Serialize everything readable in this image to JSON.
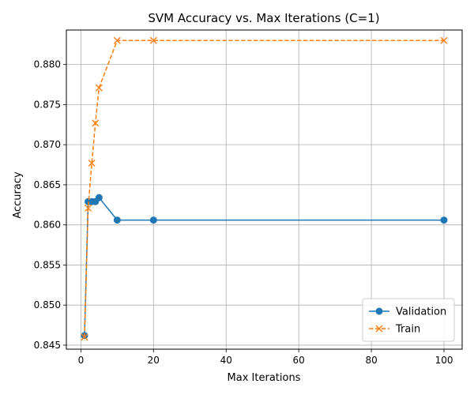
{
  "chart_data": {
    "type": "line",
    "title": "SVM Accuracy vs. Max Iterations (C=1)",
    "xlabel": "Max Iterations",
    "ylabel": "Accuracy",
    "xlim": [
      -4,
      105
    ],
    "ylim": [
      0.8445,
      0.8843
    ],
    "xticks": [
      0,
      20,
      40,
      60,
      80,
      100
    ],
    "yticks": [
      0.845,
      0.85,
      0.855,
      0.86,
      0.865,
      0.87,
      0.875,
      0.88
    ],
    "grid": true,
    "legend_position": "lower-right",
    "series": [
      {
        "name": "Validation",
        "color": "#1f77b4",
        "linestyle": "solid",
        "marker": "circle",
        "x": [
          1,
          2,
          3,
          4,
          5,
          10,
          20,
          100
        ],
        "y": [
          0.8462,
          0.8629,
          0.8629,
          0.8629,
          0.8634,
          0.8606,
          0.8606,
          0.8606
        ]
      },
      {
        "name": "Train",
        "color": "#ff7f0e",
        "linestyle": "dashed",
        "marker": "x",
        "x": [
          1,
          2,
          3,
          4,
          5,
          10,
          20,
          100
        ],
        "y": [
          0.846,
          0.8621,
          0.8677,
          0.8727,
          0.8771,
          0.883,
          0.883,
          0.883
        ]
      }
    ]
  }
}
